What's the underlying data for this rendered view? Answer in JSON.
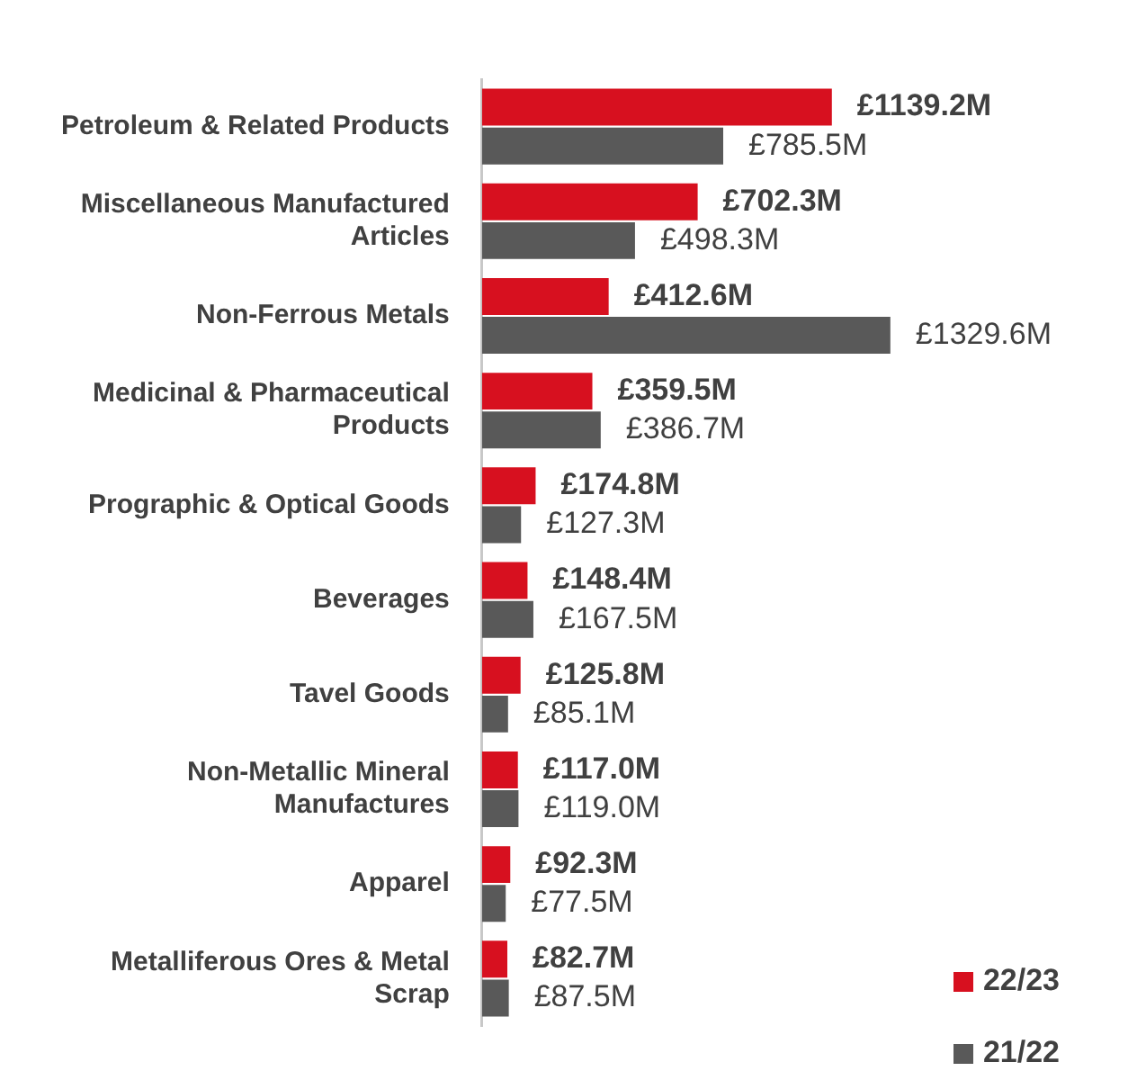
{
  "chart_data": {
    "type": "bar",
    "orientation": "horizontal",
    "categories": [
      "Petroleum & Related Products",
      "Miscellaneous Manufactured Articles",
      "Non-Ferrous Metals",
      "Medicinal & Pharmaceutical Products",
      "Prographic & Optical Goods",
      "Beverages",
      "Tavel Goods",
      "Non-Metallic Mineral Manufactures",
      "Apparel",
      "Metalliferous Ores & Metal Scrap"
    ],
    "series": [
      {
        "name": "22/23",
        "color": "#d7101f",
        "values": [
          1139.2,
          702.3,
          412.6,
          359.5,
          174.8,
          148.4,
          125.8,
          117.0,
          92.3,
          82.7
        ],
        "value_labels": [
          "£1139.2M",
          "£702.3M",
          "£412.6M",
          "£359.5M",
          "£174.8M",
          "£148.4M",
          "£125.8M",
          "£117.0M",
          "£92.3M",
          "£82.7M"
        ]
      },
      {
        "name": "21/22",
        "color": "#595959",
        "values": [
          785.5,
          498.3,
          1329.6,
          386.7,
          127.3,
          167.5,
          85.1,
          119.0,
          77.5,
          87.5
        ],
        "value_labels": [
          "£785.5M",
          "£498.3M",
          "£1329.6M",
          "£386.7M",
          "£127.3M",
          "£167.5M",
          "£85.1M",
          "£119.0M",
          "£77.5M",
          "£87.5M"
        ]
      }
    ],
    "grid": false,
    "legend": "bottom right"
  }
}
